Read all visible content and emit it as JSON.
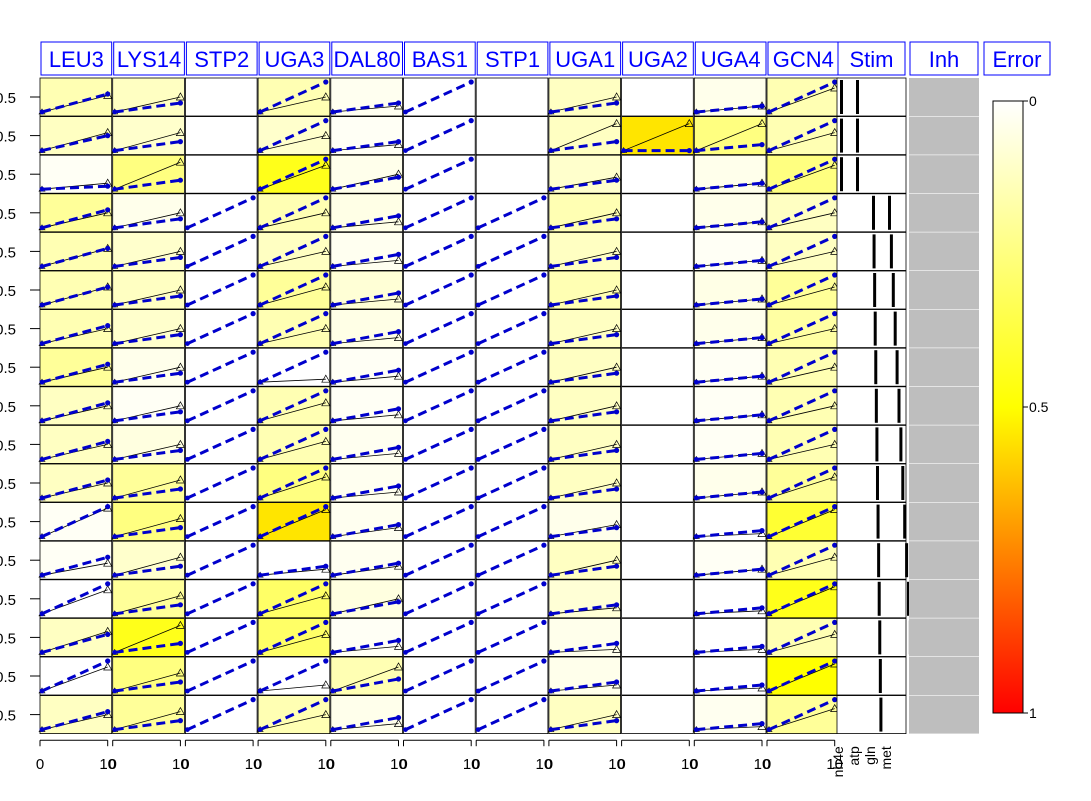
{
  "chart_data": {
    "type": "heatmap",
    "columns": [
      "LEU3",
      "LYS14",
      "STP2",
      "UGA3",
      "DAL80",
      "BAS1",
      "STP1",
      "UGA1",
      "UGA2",
      "UGA4",
      "GCN4"
    ],
    "extra_columns": {
      "stim": "Stim",
      "inh": "Inh",
      "error": "Error"
    },
    "row_count": 17,
    "y_tick_label": "0.5",
    "x_tick_labels": [
      "0",
      "10"
    ],
    "stim_labels": [
      "nh4e",
      "atp",
      "gln",
      "met"
    ],
    "colorbar_ticks": [
      "0",
      "0.5",
      "1"
    ],
    "error_matrix": [
      [
        0.15,
        0.12,
        0.0,
        0.15,
        0.03,
        0.0,
        0.0,
        0.12,
        0.0,
        0.04,
        0.15
      ],
      [
        0.12,
        0.1,
        0.0,
        0.1,
        0.02,
        0.0,
        0.0,
        0.12,
        0.55,
        0.25,
        0.15
      ],
      [
        0.02,
        0.25,
        0.0,
        0.45,
        0.04,
        0.0,
        0.0,
        0.1,
        0.0,
        0.04,
        0.25
      ],
      [
        0.2,
        0.04,
        0.0,
        0.15,
        0.05,
        0.0,
        0.0,
        0.15,
        0.0,
        0.04,
        0.12
      ],
      [
        0.15,
        0.1,
        0.0,
        0.12,
        0.03,
        0.0,
        0.0,
        0.12,
        0.0,
        0.02,
        0.12
      ],
      [
        0.15,
        0.12,
        0.0,
        0.2,
        0.08,
        0.0,
        0.0,
        0.15,
        0.0,
        0.05,
        0.2
      ],
      [
        0.15,
        0.1,
        0.0,
        0.15,
        0.05,
        0.0,
        0.0,
        0.12,
        0.0,
        0.04,
        0.18
      ],
      [
        0.2,
        0.04,
        0.0,
        0.0,
        0.02,
        0.0,
        0.0,
        0.12,
        0.0,
        0.02,
        0.15
      ],
      [
        0.12,
        0.02,
        0.0,
        0.15,
        0.02,
        0.0,
        0.0,
        0.12,
        0.0,
        0.02,
        0.15
      ],
      [
        0.12,
        0.06,
        0.0,
        0.15,
        0.03,
        0.0,
        0.0,
        0.12,
        0.0,
        0.02,
        0.15
      ],
      [
        0.12,
        0.2,
        0.0,
        0.25,
        0.03,
        0.0,
        0.0,
        0.12,
        0.0,
        0.04,
        0.2
      ],
      [
        0.02,
        0.25,
        0.0,
        0.55,
        0.03,
        0.0,
        0.0,
        0.04,
        0.0,
        0.0,
        0.4
      ],
      [
        0.02,
        0.1,
        0.0,
        0.0,
        0.03,
        0.0,
        0.0,
        0.12,
        0.0,
        0.02,
        0.15
      ],
      [
        0.0,
        0.2,
        0.0,
        0.3,
        0.06,
        0.0,
        0.0,
        0.08,
        0.0,
        0.0,
        0.45
      ],
      [
        0.12,
        0.45,
        0.0,
        0.3,
        0.02,
        0.0,
        0.0,
        0.04,
        0.0,
        0.0,
        0.15
      ],
      [
        0.0,
        0.25,
        0.0,
        0.0,
        0.15,
        0.0,
        0.0,
        0.04,
        0.0,
        0.0,
        0.5
      ],
      [
        0.12,
        0.2,
        0.0,
        0.15,
        0.04,
        0.0,
        0.0,
        0.12,
        0.0,
        0.03,
        0.2
      ]
    ],
    "sim_visible": [
      [
        true,
        true,
        false,
        true,
        true,
        true,
        false,
        true,
        false,
        true,
        true
      ],
      [
        true,
        true,
        false,
        true,
        true,
        true,
        false,
        true,
        true,
        true,
        true
      ],
      [
        true,
        true,
        false,
        true,
        true,
        true,
        false,
        true,
        false,
        true,
        true
      ],
      [
        true,
        true,
        true,
        true,
        true,
        true,
        true,
        true,
        false,
        true,
        true
      ],
      [
        true,
        true,
        true,
        true,
        true,
        true,
        true,
        true,
        false,
        true,
        true
      ],
      [
        true,
        true,
        true,
        true,
        true,
        true,
        true,
        true,
        false,
        true,
        true
      ],
      [
        true,
        true,
        true,
        true,
        true,
        true,
        true,
        true,
        false,
        true,
        true
      ],
      [
        true,
        true,
        true,
        true,
        true,
        true,
        true,
        true,
        false,
        true,
        true
      ],
      [
        true,
        true,
        true,
        true,
        true,
        true,
        true,
        true,
        false,
        true,
        true
      ],
      [
        true,
        true,
        true,
        true,
        true,
        true,
        true,
        true,
        false,
        true,
        true
      ],
      [
        true,
        true,
        true,
        true,
        true,
        true,
        true,
        true,
        false,
        true,
        true
      ],
      [
        true,
        true,
        true,
        true,
        true,
        true,
        true,
        true,
        false,
        true,
        true
      ],
      [
        true,
        true,
        true,
        true,
        true,
        true,
        true,
        true,
        false,
        true,
        true
      ],
      [
        true,
        true,
        true,
        true,
        true,
        true,
        true,
        true,
        false,
        true,
        true
      ],
      [
        true,
        true,
        true,
        true,
        true,
        true,
        true,
        true,
        false,
        true,
        true
      ],
      [
        true,
        true,
        true,
        true,
        true,
        true,
        true,
        true,
        false,
        true,
        true
      ],
      [
        true,
        true,
        true,
        true,
        true,
        true,
        true,
        true,
        false,
        true,
        true
      ]
    ],
    "sim_end": [
      [
        0.6,
        0.3,
        0.0,
        1.0,
        0.3,
        1.0,
        0.0,
        0.3,
        0.0,
        0.2,
        1.0
      ],
      [
        0.5,
        0.3,
        0.0,
        1.0,
        0.3,
        1.0,
        0.0,
        0.3,
        0.0,
        0.2,
        1.0
      ],
      [
        0.1,
        0.3,
        0.0,
        1.0,
        0.4,
        1.0,
        0.0,
        0.3,
        0.0,
        0.2,
        1.0
      ],
      [
        0.6,
        0.3,
        1.0,
        1.0,
        0.4,
        1.0,
        1.0,
        0.3,
        0.0,
        0.2,
        1.0
      ],
      [
        0.6,
        0.3,
        1.0,
        1.0,
        0.4,
        1.0,
        1.0,
        0.3,
        0.0,
        0.2,
        1.0
      ],
      [
        0.6,
        0.3,
        1.0,
        1.0,
        0.4,
        1.0,
        1.0,
        0.3,
        0.0,
        0.2,
        1.0
      ],
      [
        0.6,
        0.3,
        1.0,
        1.0,
        0.4,
        1.0,
        1.0,
        0.3,
        0.0,
        0.2,
        1.0
      ],
      [
        0.6,
        0.3,
        1.0,
        1.0,
        0.4,
        1.0,
        1.0,
        0.3,
        0.0,
        0.2,
        1.0
      ],
      [
        0.6,
        0.3,
        1.0,
        1.0,
        0.4,
        1.0,
        1.0,
        0.3,
        0.0,
        0.2,
        1.0
      ],
      [
        0.6,
        0.3,
        1.0,
        1.0,
        0.4,
        1.0,
        1.0,
        0.3,
        0.0,
        0.2,
        1.0
      ],
      [
        0.6,
        0.3,
        1.0,
        1.0,
        0.4,
        1.0,
        1.0,
        0.3,
        0.0,
        0.2,
        1.0
      ],
      [
        1.0,
        0.3,
        1.0,
        1.0,
        0.4,
        1.0,
        1.0,
        0.3,
        0.0,
        0.2,
        1.0
      ],
      [
        0.6,
        0.3,
        1.0,
        0.3,
        0.4,
        1.0,
        1.0,
        0.3,
        0.0,
        0.2,
        1.0
      ],
      [
        1.0,
        0.3,
        1.0,
        1.0,
        0.4,
        1.0,
        1.0,
        0.3,
        0.0,
        0.2,
        1.0
      ],
      [
        0.6,
        0.3,
        1.0,
        1.0,
        0.4,
        1.0,
        1.0,
        0.3,
        0.0,
        0.2,
        1.0
      ],
      [
        1.0,
        0.3,
        1.0,
        1.0,
        0.4,
        1.0,
        1.0,
        0.3,
        0.0,
        0.2,
        1.0
      ],
      [
        0.6,
        0.3,
        1.0,
        1.0,
        0.4,
        1.0,
        1.0,
        0.3,
        0.0,
        0.2,
        1.0
      ]
    ],
    "data_end": [
      [
        0.55,
        0.5,
        null,
        0.5,
        0.2,
        null,
        null,
        0.5,
        null,
        0.2,
        0.8
      ],
      [
        0.6,
        0.6,
        null,
        0.5,
        0.2,
        null,
        null,
        0.9,
        0.9,
        0.9,
        0.6
      ],
      [
        0.2,
        0.9,
        null,
        0.8,
        0.5,
        null,
        null,
        0.4,
        null,
        0.2,
        0.8
      ],
      [
        0.5,
        0.5,
        null,
        0.5,
        0.2,
        null,
        null,
        0.5,
        null,
        0.2,
        0.5
      ],
      [
        0.6,
        0.5,
        null,
        0.5,
        0.2,
        null,
        null,
        0.5,
        null,
        0.2,
        0.5
      ],
      [
        0.6,
        0.5,
        null,
        0.6,
        0.2,
        null,
        null,
        0.5,
        null,
        0.2,
        0.6
      ],
      [
        0.5,
        0.5,
        null,
        0.5,
        0.2,
        null,
        null,
        0.5,
        null,
        0.2,
        0.5
      ],
      [
        0.5,
        0.5,
        null,
        0.1,
        0.2,
        null,
        null,
        0.5,
        null,
        0.2,
        0.5
      ],
      [
        0.5,
        0.5,
        null,
        0.6,
        0.2,
        null,
        null,
        0.5,
        null,
        0.2,
        0.5
      ],
      [
        0.5,
        0.5,
        null,
        0.6,
        0.2,
        null,
        null,
        0.5,
        null,
        0.2,
        0.5
      ],
      [
        0.5,
        0.6,
        null,
        0.7,
        0.2,
        null,
        null,
        0.5,
        null,
        0.2,
        0.7
      ],
      [
        0.95,
        0.6,
        null,
        0.9,
        0.3,
        null,
        null,
        0.4,
        null,
        0.1,
        0.9
      ],
      [
        0.4,
        0.6,
        null,
        0.2,
        0.3,
        null,
        null,
        0.5,
        null,
        0.2,
        0.6
      ],
      [
        0.8,
        0.6,
        null,
        0.6,
        0.5,
        null,
        null,
        0.2,
        null,
        0.1,
        0.9
      ],
      [
        0.7,
        0.9,
        null,
        0.6,
        0.2,
        null,
        null,
        0.1,
        null,
        0.1,
        0.6
      ],
      [
        0.8,
        0.6,
        null,
        0.2,
        0.8,
        null,
        null,
        0.2,
        null,
        0.1,
        0.9
      ],
      [
        0.5,
        0.6,
        null,
        0.5,
        0.2,
        null,
        null,
        0.5,
        null,
        0.1,
        0.7
      ]
    ],
    "stim_matrix": [
      [
        1,
        1,
        0,
        0
      ],
      [
        1,
        1,
        0,
        0
      ],
      [
        1,
        1,
        0,
        0
      ],
      [
        0,
        0,
        1,
        1
      ],
      [
        0,
        0,
        1,
        1
      ],
      [
        0,
        0,
        1,
        1
      ],
      [
        0,
        0,
        1,
        1
      ],
      [
        0,
        0,
        1,
        1
      ],
      [
        0,
        0,
        1,
        1
      ],
      [
        0,
        0,
        1,
        1
      ],
      [
        0,
        0,
        1,
        1
      ],
      [
        0,
        0,
        1,
        1
      ],
      [
        0,
        0,
        1,
        1
      ],
      [
        0,
        0,
        1,
        1
      ],
      [
        0,
        0,
        1,
        1
      ],
      [
        0,
        0,
        1,
        1
      ],
      [
        0,
        0,
        1,
        1
      ]
    ],
    "colors": {
      "title_text": "#0000FF",
      "title_border": "#0000FF",
      "sim_line": "#0000CC",
      "data_line": "#000000",
      "inh_fill": "#BEBEBE",
      "scale_low": "#FFFFFF",
      "scale_mid": "#FFFF00",
      "scale_high": "#FF0000"
    }
  }
}
